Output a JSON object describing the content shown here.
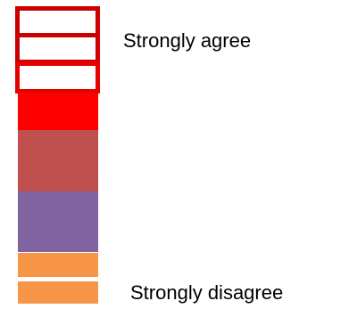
{
  "scale": {
    "top_label": "Strongly agree",
    "bottom_label": "Strongly disagree",
    "colors": {
      "outline_red": "#cc0000",
      "bright_red": "#ff0000",
      "brick_red": "#c0504d",
      "purple": "#8064a2",
      "orange": "#f79646"
    }
  }
}
